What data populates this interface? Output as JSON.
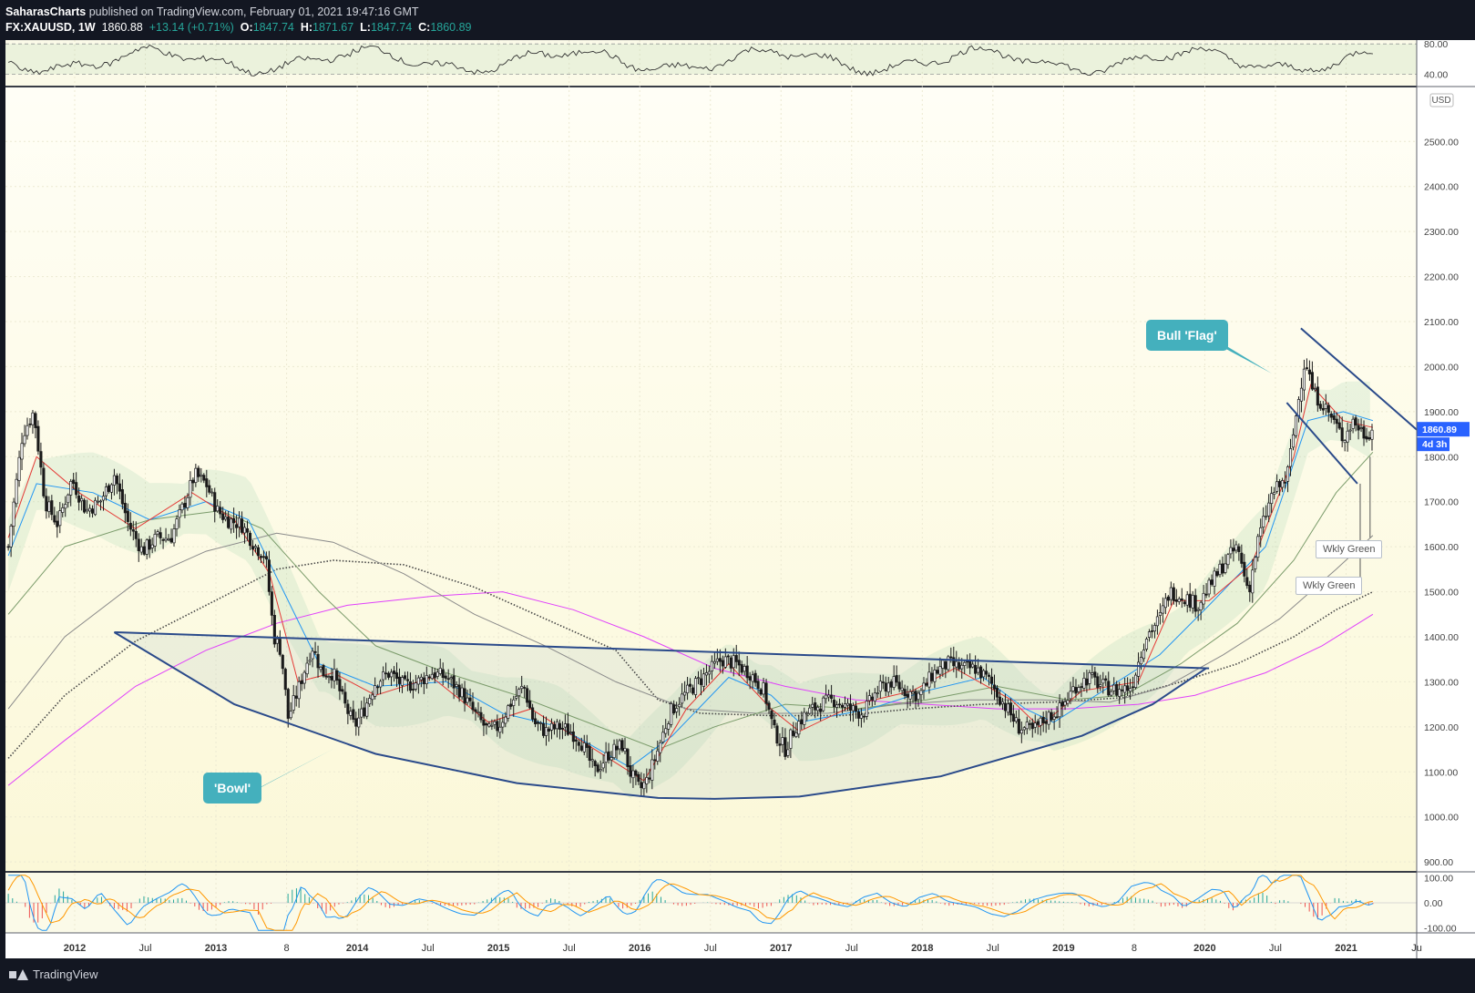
{
  "header": {
    "author": "SaharasCharts",
    "published": " published on TradingView.com, February 01, 2021 19:47:16 GMT",
    "symbol": "FX:XAUUSD, 1W",
    "last": "1860.88",
    "change": "+13.14 (+0.71%)",
    "o_label": "O:",
    "o": "1847.74",
    "h_label": "H:",
    "h": "1871.67",
    "l_label": "L:",
    "l": "1847.74",
    "c_label": "C:",
    "c": "1860.89"
  },
  "annotations": {
    "bowl": "'Bowl'",
    "flag": "Bull 'Flag'",
    "wkly1": "Wkly Green",
    "wkly2": "Wkly Green"
  },
  "footer": {
    "brand": "TradingView"
  },
  "colors": {
    "background": "#fdfbef",
    "candle": "#1a1a1a",
    "ema_fast": "#e53935",
    "ema_mid": "#2196f3",
    "sma_green": "#7a9b6a",
    "sma_gray": "#8a8a8a",
    "sma_magenta": "#e040fb",
    "trend_line": "#2a4a8a",
    "callout": "#44b0bd",
    "price_tag": "#2962ff"
  },
  "chart_data": {
    "type": "line",
    "title": "",
    "xlabel": "",
    "ylabel": "",
    "currency": "USD",
    "price_last_label": "1860.89",
    "countdown_label": "4d 3h",
    "ylim": [
      880,
      2620
    ],
    "ticks_y": [
      "900.00",
      "1000.00",
      "1100.00",
      "1200.00",
      "1300.00",
      "1400.00",
      "1500.00",
      "1600.00",
      "1700.00",
      "1800.00",
      "1900.00",
      "2000.00",
      "2100.00",
      "2200.00",
      "2300.00",
      "2400.00",
      "2500.00"
    ],
    "ticks_x": [
      {
        "t": 2011.87,
        "label": "2012"
      },
      {
        "t": 2012.37,
        "label": "Jul"
      },
      {
        "t": 2012.87,
        "label": "2013"
      },
      {
        "t": 2013.37,
        "label": "8"
      },
      {
        "t": 2013.87,
        "label": "2014"
      },
      {
        "t": 2014.37,
        "label": "Jul"
      },
      {
        "t": 2014.87,
        "label": "2015"
      },
      {
        "t": 2015.37,
        "label": "Jul"
      },
      {
        "t": 2015.87,
        "label": "2016"
      },
      {
        "t": 2016.37,
        "label": "Jul"
      },
      {
        "t": 2016.87,
        "label": "2017"
      },
      {
        "t": 2017.37,
        "label": "Jul"
      },
      {
        "t": 2017.87,
        "label": "2018"
      },
      {
        "t": 2018.37,
        "label": "Jul"
      },
      {
        "t": 2018.87,
        "label": "2019"
      },
      {
        "t": 2019.37,
        "label": "8"
      },
      {
        "t": 2019.87,
        "label": "2020"
      },
      {
        "t": 2020.37,
        "label": "Jul"
      },
      {
        "t": 2020.87,
        "label": "2021"
      },
      {
        "t": 2021.37,
        "label": "Ju"
      }
    ],
    "price_path": [
      [
        2011.4,
        1600
      ],
      [
        2011.5,
        1850
      ],
      [
        2011.58,
        1900
      ],
      [
        2011.66,
        1700
      ],
      [
        2011.75,
        1650
      ],
      [
        2011.85,
        1750
      ],
      [
        2011.95,
        1680
      ],
      [
        2012.05,
        1700
      ],
      [
        2012.15,
        1760
      ],
      [
        2012.25,
        1650
      ],
      [
        2012.35,
        1590
      ],
      [
        2012.45,
        1620
      ],
      [
        2012.55,
        1620
      ],
      [
        2012.65,
        1700
      ],
      [
        2012.72,
        1760
      ],
      [
        2012.8,
        1740
      ],
      [
        2012.88,
        1680
      ],
      [
        2012.95,
        1660
      ],
      [
        2013.05,
        1650
      ],
      [
        2013.15,
        1600
      ],
      [
        2013.22,
        1580
      ],
      [
        2013.28,
        1400
      ],
      [
        2013.33,
        1370
      ],
      [
        2013.38,
        1220
      ],
      [
        2013.45,
        1280
      ],
      [
        2013.55,
        1380
      ],
      [
        2013.62,
        1320
      ],
      [
        2013.7,
        1320
      ],
      [
        2013.78,
        1250
      ],
      [
        2013.85,
        1200
      ],
      [
        2013.92,
        1240
      ],
      [
        2014.0,
        1300
      ],
      [
        2014.1,
        1320
      ],
      [
        2014.2,
        1290
      ],
      [
        2014.3,
        1300
      ],
      [
        2014.4,
        1320
      ],
      [
        2014.5,
        1310
      ],
      [
        2014.6,
        1280
      ],
      [
        2014.7,
        1230
      ],
      [
        2014.8,
        1190
      ],
      [
        2014.87,
        1200
      ],
      [
        2014.95,
        1250
      ],
      [
        2015.05,
        1290
      ],
      [
        2015.12,
        1210
      ],
      [
        2015.2,
        1190
      ],
      [
        2015.3,
        1200
      ],
      [
        2015.38,
        1190
      ],
      [
        2015.45,
        1170
      ],
      [
        2015.55,
        1100
      ],
      [
        2015.65,
        1140
      ],
      [
        2015.75,
        1160
      ],
      [
        2015.8,
        1100
      ],
      [
        2015.87,
        1060
      ],
      [
        2015.92,
        1080
      ],
      [
        2016.0,
        1150
      ],
      [
        2016.08,
        1230
      ],
      [
        2016.15,
        1260
      ],
      [
        2016.25,
        1290
      ],
      [
        2016.35,
        1320
      ],
      [
        2016.45,
        1350
      ],
      [
        2016.55,
        1340
      ],
      [
        2016.65,
        1320
      ],
      [
        2016.75,
        1280
      ],
      [
        2016.82,
        1190
      ],
      [
        2016.9,
        1150
      ],
      [
        2016.97,
        1200
      ],
      [
        2017.05,
        1230
      ],
      [
        2017.15,
        1250
      ],
      [
        2017.25,
        1260
      ],
      [
        2017.35,
        1240
      ],
      [
        2017.45,
        1230
      ],
      [
        2017.55,
        1280
      ],
      [
        2017.65,
        1300
      ],
      [
        2017.75,
        1280
      ],
      [
        2017.85,
        1270
      ],
      [
        2017.95,
        1320
      ],
      [
        2018.05,
        1340
      ],
      [
        2018.15,
        1330
      ],
      [
        2018.25,
        1330
      ],
      [
        2018.35,
        1300
      ],
      [
        2018.45,
        1250
      ],
      [
        2018.55,
        1200
      ],
      [
        2018.65,
        1190
      ],
      [
        2018.75,
        1220
      ],
      [
        2018.85,
        1240
      ],
      [
        2018.95,
        1290
      ],
      [
        2019.05,
        1310
      ],
      [
        2019.15,
        1290
      ],
      [
        2019.25,
        1280
      ],
      [
        2019.35,
        1290
      ],
      [
        2019.45,
        1400
      ],
      [
        2019.55,
        1440
      ],
      [
        2019.62,
        1500
      ],
      [
        2019.72,
        1490
      ],
      [
        2019.82,
        1470
      ],
      [
        2019.9,
        1510
      ],
      [
        2020.0,
        1560
      ],
      [
        2020.1,
        1600
      ],
      [
        2020.18,
        1500
      ],
      [
        2020.25,
        1620
      ],
      [
        2020.35,
        1720
      ],
      [
        2020.45,
        1750
      ],
      [
        2020.52,
        1900
      ],
      [
        2020.58,
        2020
      ],
      [
        2020.64,
        1940
      ],
      [
        2020.7,
        1920
      ],
      [
        2020.78,
        1880
      ],
      [
        2020.85,
        1840
      ],
      [
        2020.92,
        1880
      ],
      [
        2021.0,
        1850
      ],
      [
        2021.06,
        1860
      ]
    ],
    "ema_fast_path": [
      [
        2011.4,
        1620
      ],
      [
        2011.6,
        1800
      ],
      [
        2011.9,
        1720
      ],
      [
        2012.3,
        1640
      ],
      [
        2012.7,
        1720
      ],
      [
        2013.0,
        1660
      ],
      [
        2013.25,
        1540
      ],
      [
        2013.45,
        1300
      ],
      [
        2013.7,
        1320
      ],
      [
        2014.0,
        1270
      ],
      [
        2014.4,
        1310
      ],
      [
        2014.8,
        1210
      ],
      [
        2015.1,
        1240
      ],
      [
        2015.5,
        1160
      ],
      [
        2015.9,
        1080
      ],
      [
        2016.2,
        1240
      ],
      [
        2016.5,
        1340
      ],
      [
        2016.8,
        1240
      ],
      [
        2017.0,
        1190
      ],
      [
        2017.4,
        1250
      ],
      [
        2017.8,
        1280
      ],
      [
        2018.1,
        1330
      ],
      [
        2018.5,
        1260
      ],
      [
        2018.7,
        1200
      ],
      [
        2019.0,
        1280
      ],
      [
        2019.4,
        1300
      ],
      [
        2019.65,
        1480
      ],
      [
        2019.9,
        1480
      ],
      [
        2020.2,
        1560
      ],
      [
        2020.5,
        1800
      ],
      [
        2020.62,
        1960
      ],
      [
        2020.85,
        1880
      ],
      [
        2021.06,
        1865
      ]
    ],
    "ema_mid_path": [
      [
        2011.4,
        1580
      ],
      [
        2011.6,
        1740
      ],
      [
        2012.0,
        1720
      ],
      [
        2012.4,
        1660
      ],
      [
        2012.8,
        1700
      ],
      [
        2013.1,
        1660
      ],
      [
        2013.35,
        1500
      ],
      [
        2013.6,
        1340
      ],
      [
        2014.0,
        1290
      ],
      [
        2014.5,
        1300
      ],
      [
        2014.9,
        1230
      ],
      [
        2015.3,
        1200
      ],
      [
        2015.8,
        1110
      ],
      [
        2016.1,
        1180
      ],
      [
        2016.5,
        1310
      ],
      [
        2016.8,
        1270
      ],
      [
        2017.0,
        1210
      ],
      [
        2017.5,
        1240
      ],
      [
        2017.9,
        1280
      ],
      [
        2018.3,
        1310
      ],
      [
        2018.6,
        1240
      ],
      [
        2018.8,
        1210
      ],
      [
        2019.2,
        1290
      ],
      [
        2019.55,
        1360
      ],
      [
        2019.9,
        1470
      ],
      [
        2020.3,
        1600
      ],
      [
        2020.6,
        1880
      ],
      [
        2020.85,
        1900
      ],
      [
        2021.06,
        1880
      ]
    ],
    "sma_green_path": [
      [
        2011.4,
        1450
      ],
      [
        2011.8,
        1600
      ],
      [
        2012.4,
        1660
      ],
      [
        2012.9,
        1680
      ],
      [
        2013.2,
        1640
      ],
      [
        2013.6,
        1500
      ],
      [
        2014.0,
        1380
      ],
      [
        2014.5,
        1320
      ],
      [
        2015.0,
        1270
      ],
      [
        2015.5,
        1210
      ],
      [
        2016.0,
        1150
      ],
      [
        2016.4,
        1200
      ],
      [
        2016.9,
        1250
      ],
      [
        2017.4,
        1240
      ],
      [
        2017.9,
        1260
      ],
      [
        2018.4,
        1290
      ],
      [
        2018.9,
        1260
      ],
      [
        2019.3,
        1270
      ],
      [
        2019.7,
        1340
      ],
      [
        2020.1,
        1430
      ],
      [
        2020.5,
        1570
      ],
      [
        2020.8,
        1720
      ],
      [
        2021.06,
        1810
      ]
    ],
    "sma_gray_path": [
      [
        2011.4,
        1240
      ],
      [
        2011.8,
        1400
      ],
      [
        2012.3,
        1520
      ],
      [
        2012.8,
        1590
      ],
      [
        2013.3,
        1630
      ],
      [
        2013.7,
        1610
      ],
      [
        2014.2,
        1540
      ],
      [
        2014.7,
        1450
      ],
      [
        2015.2,
        1380
      ],
      [
        2015.7,
        1300
      ],
      [
        2016.2,
        1240
      ],
      [
        2016.7,
        1230
      ],
      [
        2017.2,
        1230
      ],
      [
        2017.7,
        1250
      ],
      [
        2018.2,
        1260
      ],
      [
        2018.7,
        1260
      ],
      [
        2019.2,
        1255
      ],
      [
        2019.6,
        1290
      ],
      [
        2020.0,
        1360
      ],
      [
        2020.4,
        1440
      ],
      [
        2020.8,
        1550
      ],
      [
        2021.06,
        1625
      ]
    ],
    "sma_dotted_path": [
      [
        2011.4,
        1130
      ],
      [
        2011.8,
        1270
      ],
      [
        2012.3,
        1390
      ],
      [
        2012.8,
        1470
      ],
      [
        2013.3,
        1550
      ],
      [
        2013.7,
        1570
      ],
      [
        2014.2,
        1560
      ],
      [
        2014.7,
        1510
      ],
      [
        2015.2,
        1440
      ],
      [
        2015.7,
        1370
      ],
      [
        2016.0,
        1260
      ],
      [
        2016.3,
        1230
      ],
      [
        2016.8,
        1225
      ],
      [
        2017.3,
        1225
      ],
      [
        2017.8,
        1240
      ],
      [
        2018.3,
        1250
      ],
      [
        2018.8,
        1255
      ],
      [
        2019.3,
        1265
      ],
      [
        2019.7,
        1300
      ],
      [
        2020.1,
        1340
      ],
      [
        2020.5,
        1400
      ],
      [
        2020.8,
        1460
      ],
      [
        2021.06,
        1500
      ]
    ],
    "sma_magenta_path": [
      [
        2011.4,
        1070
      ],
      [
        2011.8,
        1170
      ],
      [
        2012.3,
        1290
      ],
      [
        2012.8,
        1370
      ],
      [
        2013.3,
        1430
      ],
      [
        2013.8,
        1470
      ],
      [
        2014.4,
        1490
      ],
      [
        2014.9,
        1500
      ],
      [
        2015.4,
        1460
      ],
      [
        2015.9,
        1400
      ],
      [
        2016.4,
        1330
      ],
      [
        2016.9,
        1290
      ],
      [
        2017.4,
        1260
      ],
      [
        2017.9,
        1250
      ],
      [
        2018.4,
        1240
      ],
      [
        2018.9,
        1240
      ],
      [
        2019.4,
        1250
      ],
      [
        2019.8,
        1270
      ],
      [
        2020.3,
        1320
      ],
      [
        2020.7,
        1380
      ],
      [
        2021.06,
        1450
      ]
    ],
    "bowl_neckline": [
      [
        2012.15,
        1410
      ],
      [
        2019.9,
        1330
      ]
    ],
    "bowl_curve": [
      [
        2012.15,
        1410
      ],
      [
        2013.0,
        1250
      ],
      [
        2014.0,
        1140
      ],
      [
        2015.0,
        1075
      ],
      [
        2016.0,
        1042
      ],
      [
        2016.4,
        1040
      ],
      [
        2017.0,
        1045
      ],
      [
        2018.0,
        1090
      ],
      [
        2019.0,
        1180
      ],
      [
        2019.5,
        1250
      ],
      [
        2019.88,
        1330
      ]
    ],
    "flag_upper": [
      [
        2020.55,
        2085
      ],
      [
        2021.37,
        1860
      ]
    ],
    "flag_lower": [
      [
        2020.45,
        1920
      ],
      [
        2020.95,
        1740
      ]
    ],
    "rsi": {
      "levels": [
        "80.00",
        "40.00"
      ],
      "range": [
        25,
        85
      ]
    },
    "macd": {
      "ticks": [
        "100.00",
        "0.00",
        "-100.00"
      ],
      "range": [
        -120,
        120
      ]
    }
  }
}
